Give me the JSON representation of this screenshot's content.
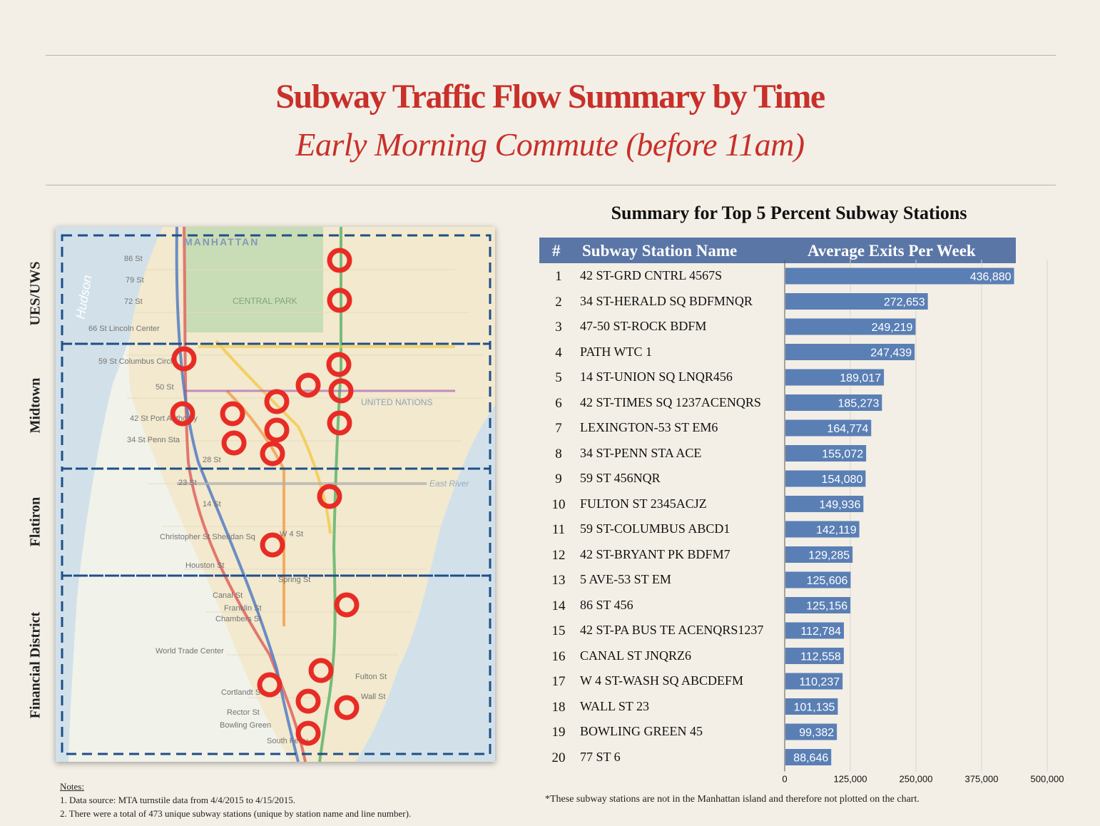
{
  "title": "Subway Traffic Flow Summary by Time",
  "subtitle": "Early Morning Commute (before 11am)",
  "map": {
    "regions": [
      "UES/UWS",
      "Midtown",
      "Flatiron",
      "Financial District"
    ],
    "header_label": "MANHATTAN",
    "street_labels": [
      "86 St",
      "79 St",
      "72 St",
      "66 St Lincoln Center",
      "59 St Columbus Circle",
      "50 St",
      "42 St Port Authority",
      "34 St Penn Sta",
      "28 St",
      "23 St",
      "14 St",
      "Christopher St Sheridan Sq",
      "W 4 St",
      "Houston St",
      "Spring St",
      "Canal St",
      "Franklin St",
      "Chambers St",
      "World Trade Center",
      "Fulton St",
      "Cortlandt St",
      "Wall St",
      "Rector St",
      "Bowling Green",
      "South Ferry",
      "CENTRAL PARK",
      "UNITED NATIONS",
      "East River",
      "Hudson"
    ],
    "accent_color": "#e82c25"
  },
  "table": {
    "title": "Summary for Top 5 Percent Subway Stations",
    "col_num": "#",
    "col_name": "Subway Station Name",
    "col_exits": "Average Exits Per Week",
    "rows": [
      {
        "rank": "1",
        "name": "42 ST-GRD CNTRL 4567S",
        "label": "436,880"
      },
      {
        "rank": "2",
        "name": "34 ST-HERALD SQ BDFMNQR",
        "label": "272,653"
      },
      {
        "rank": "3",
        "name": "47-50 ST-ROCK BDFM",
        "label": "249,219"
      },
      {
        "rank": "4",
        "name": "PATH WTC 1",
        "label": "247,439"
      },
      {
        "rank": "5",
        "name": "14 ST-UNION SQ LNQR456",
        "label": "189,017"
      },
      {
        "rank": "6",
        "name": "42 ST-TIMES SQ 1237ACENQRS",
        "label": "185,273"
      },
      {
        "rank": "7",
        "name": "LEXINGTON-53 ST EM6",
        "label": "164,774"
      },
      {
        "rank": "8",
        "name": "34 ST-PENN STA ACE",
        "label": "155,072"
      },
      {
        "rank": "9",
        "name": "59 ST 456NQR",
        "label": "154,080"
      },
      {
        "rank": "10",
        "name": "FULTON ST 2345ACJZ",
        "label": "149,936"
      },
      {
        "rank": "11",
        "name": "59 ST-COLUMBUS ABCD1",
        "label": "142,119"
      },
      {
        "rank": "12",
        "name": "42 ST-BRYANT PK BDFM7",
        "label": "129,285"
      },
      {
        "rank": "13",
        "name": "5 AVE-53 ST EM",
        "label": "125,606"
      },
      {
        "rank": "14",
        "name": "86 ST 456",
        "label": "125,156"
      },
      {
        "rank": "15",
        "name": "42 ST-PA BUS TE ACENQRS1237",
        "label": "112,784"
      },
      {
        "rank": "16",
        "name": "CANAL ST JNQRZ6",
        "label": "112,558"
      },
      {
        "rank": "17",
        "name": "W 4 ST-WASH SQ ABCDEFM",
        "label": "110,237"
      },
      {
        "rank": "18",
        "name": "WALL ST 23",
        "label": "101,135"
      },
      {
        "rank": "19",
        "name": "BOWLING GREEN 45",
        "label": "99,382"
      },
      {
        "rank": "20",
        "name": "77 ST 6",
        "label": "88,646"
      }
    ],
    "footnote": "*These subway stations are not in the Manhattan island and therefore not plotted on the chart."
  },
  "chart_data": {
    "type": "bar",
    "orientation": "horizontal",
    "categories": [
      "42 ST-GRD CNTRL 4567S",
      "34 ST-HERALD SQ BDFMNQR",
      "47-50 ST-ROCK BDFM",
      "PATH WTC 1",
      "14 ST-UNION SQ LNQR456",
      "42 ST-TIMES SQ 1237ACENQRS",
      "LEXINGTON-53 ST EM6",
      "34 ST-PENN STA ACE",
      "59 ST 456NQR",
      "FULTON ST 2345ACJZ",
      "59 ST-COLUMBUS ABCD1",
      "42 ST-BRYANT PK BDFM7",
      "5 AVE-53 ST EM",
      "86 ST 456",
      "42 ST-PA BUS TE ACENQRS1237",
      "CANAL ST JNQRZ6",
      "W 4 ST-WASH SQ ABCDEFM",
      "WALL ST 23",
      "BOWLING GREEN 45",
      "77 ST 6"
    ],
    "values": [
      436880,
      272653,
      249219,
      247439,
      189017,
      185273,
      164774,
      155072,
      154080,
      149936,
      142119,
      129285,
      125606,
      125156,
      112784,
      112558,
      110237,
      101135,
      99382,
      88646
    ],
    "xlim": [
      0,
      500000
    ],
    "xticks": [
      0,
      125000,
      250000,
      375000,
      500000
    ],
    "xtick_labels": [
      "0",
      "125,000",
      "250,000",
      "375,000",
      "500,000"
    ],
    "xlabel": "Average Exits Per Week",
    "grid": true,
    "bar_color": "#5a7fb5"
  },
  "notes": {
    "heading": "Notes:",
    "items": [
      "1.  Data source: MTA turnstile data from 4/4/2015 to 4/15/2015.",
      "2.  There were a total of 473 unique subway stations (unique by station name and line number)."
    ]
  }
}
